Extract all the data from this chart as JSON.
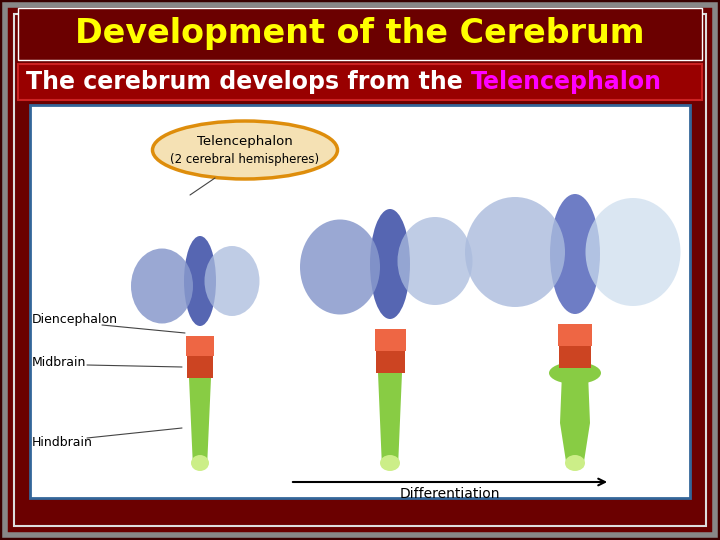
{
  "title": "Development of the Cerebrum",
  "subtitle_plain": "The cerebrum develops from the ",
  "subtitle_highlight": "Telencephalon",
  "bg_color": "#6B0000",
  "outer_bg": "#3A0000",
  "title_color": "#FFFF00",
  "subtitle_color": "#FFFFFF",
  "subtitle_highlight_color": "#FF00FF",
  "title_fontsize": 24,
  "subtitle_fontsize": 17,
  "fig_width": 7.2,
  "fig_height": 5.4,
  "dpi": 100,
  "img_bg": "#FFFFFF",
  "hindbrain_color": "#88CC44",
  "hindbrain_tip_color": "#CCEE88",
  "midbrain_color": "#CC4422",
  "diencephalon_color": "#EE6644",
  "telencephalon_color1": "#8899CC",
  "telencephalon_color2": "#AABBDD",
  "telencephalon_color3": "#CCDDEE",
  "label_color": "#000000",
  "arrow_color": "#000000",
  "telencephalon_label_bg": "#F5E0B0",
  "telencephalon_label_border": "#DD8800"
}
